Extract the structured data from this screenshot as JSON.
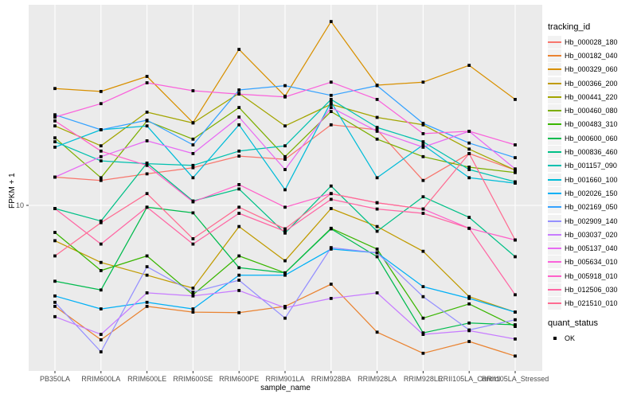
{
  "chart_data": {
    "type": "line",
    "title": "",
    "xlabel": "sample_name",
    "ylabel": "FPKM + 1",
    "y_scale": "log10",
    "y_ticks": [
      {
        "value": 10,
        "label": "10"
      }
    ],
    "grid": "major",
    "panel_background": "#ebebeb",
    "gridline_color": "#ffffff",
    "point_marker": "filled-black-square",
    "legend_position": "right",
    "categories": [
      "PB350LA",
      "RRIM600LA",
      "RRIM600LE",
      "RRIM600SE",
      "RRIM600PE",
      "RRIM901LA",
      "RRIM928BA",
      "RRIM928LA",
      "RRIM928LE",
      "RRII105LA_Control",
      "RRII105LA_Stressed"
    ],
    "series": [
      {
        "name": "Hb_000028_180",
        "color": "#F8766D",
        "values": [
          13.7,
          13.2,
          14.2,
          15.2,
          17.3,
          16.7,
          24.5,
          23.2,
          13.2,
          17.8,
          14.8
        ]
      },
      {
        "name": "Hb_000182_040",
        "color": "#EA8331",
        "values": [
          3.25,
          2.24,
          3.25,
          3.05,
          3.03,
          3.25,
          4.16,
          2.44,
          1.93,
          2.2,
          1.87
        ]
      },
      {
        "name": "Hb_000329_060",
        "color": "#D89000",
        "values": [
          36.7,
          35.5,
          42.0,
          25.1,
          56.7,
          33.7,
          77.3,
          38.1,
          39.4,
          47.5,
          32.5
        ]
      },
      {
        "name": "Hb_000366_200",
        "color": "#C09B00",
        "values": [
          6.75,
          5.3,
          4.6,
          3.98,
          7.9,
          5.4,
          9.65,
          7.9,
          6.0,
          3.62,
          3.05
        ]
      },
      {
        "name": "Hb_000441_220",
        "color": "#A3A500",
        "values": [
          24.2,
          19.4,
          28.2,
          25.0,
          34.8,
          24.2,
          30.8,
          26.6,
          24.5,
          18.7,
          14.8
        ]
      },
      {
        "name": "Hb_000460_080",
        "color": "#7CAE00",
        "values": [
          21.2,
          13.6,
          25.6,
          20.9,
          29.7,
          17.2,
          28.4,
          20.9,
          17.2,
          15.3,
          14.4
        ]
      },
      {
        "name": "Hb_000483_310",
        "color": "#39B600",
        "values": [
          7.4,
          4.84,
          5.7,
          3.7,
          5.7,
          4.72,
          7.75,
          6.15,
          2.85,
          3.34,
          2.6
        ]
      },
      {
        "name": "Hb_000600_060",
        "color": "#00BB4E",
        "values": [
          4.3,
          3.9,
          9.8,
          9.2,
          5.0,
          4.72,
          7.7,
          5.65,
          2.42,
          2.7,
          2.65
        ]
      },
      {
        "name": "Hb_000836_460",
        "color": "#00C087",
        "values": [
          9.65,
          8.4,
          16.0,
          10.5,
          12.0,
          7.35,
          12.4,
          7.5,
          11.0,
          8.75,
          5.65
        ]
      },
      {
        "name": "Hb_001157_090",
        "color": "#00C0AF",
        "values": [
          20.3,
          16.4,
          15.9,
          15.6,
          18.3,
          19.4,
          32.5,
          23.8,
          20.3,
          14.9,
          13.0
        ]
      },
      {
        "name": "Hb_001660_100",
        "color": "#00BCD8",
        "values": [
          19.1,
          23.2,
          24.2,
          13.6,
          24.5,
          11.9,
          31.6,
          13.6,
          19.6,
          13.6,
          12.8
        ]
      },
      {
        "name": "Hb_002026_150",
        "color": "#00B0F6",
        "values": [
          3.65,
          3.16,
          3.4,
          3.16,
          4.6,
          4.6,
          6.15,
          5.9,
          4.05,
          3.55,
          3.05
        ]
      },
      {
        "name": "Hb_002169_050",
        "color": "#35A2FF",
        "values": [
          27.4,
          23.2,
          25.8,
          19.6,
          36.1,
          37.9,
          34.0,
          37.9,
          24.9,
          20.0,
          17.0
        ]
      },
      {
        "name": "Hb_002909_140",
        "color": "#9590FF",
        "values": [
          3.4,
          1.96,
          5.05,
          3.81,
          4.35,
          2.85,
          6.25,
          5.9,
          3.62,
          2.5,
          2.8
        ]
      },
      {
        "name": "Hb_003037_020",
        "color": "#C77CFF",
        "values": [
          2.9,
          2.38,
          3.78,
          3.65,
          3.88,
          3.2,
          3.55,
          3.78,
          2.38,
          2.48,
          2.26
        ]
      },
      {
        "name": "Hb_005137_040",
        "color": "#E76BF3",
        "values": [
          13.7,
          17.2,
          20.5,
          17.8,
          26.7,
          14.9,
          29.7,
          22.8,
          19.1,
          22.8,
          15.0
        ]
      },
      {
        "name": "Hb_005634_010",
        "color": "#FA62DB",
        "values": [
          26.7,
          31.0,
          39.1,
          35.8,
          34.5,
          33.4,
          39.4,
          32.5,
          22.2,
          22.8,
          19.6
        ]
      },
      {
        "name": "Hb_005918_010",
        "color": "#FF61C9",
        "values": [
          25.6,
          18.3,
          15.6,
          10.4,
          12.6,
          9.8,
          11.4,
          10.3,
          9.6,
          7.75,
          6.8
        ]
      },
      {
        "name": "Hb_012506_030",
        "color": "#FF67A4",
        "values": [
          9.65,
          6.5,
          9.8,
          6.5,
          9.15,
          7.5,
          10.7,
          9.6,
          9.15,
          7.75,
          3.7
        ]
      },
      {
        "name": "Hb_021510_010",
        "color": "#FF6C92",
        "values": [
          5.7,
          8.25,
          11.4,
          6.9,
          9.8,
          7.7,
          11.4,
          10.3,
          9.6,
          17.8,
          6.8
        ]
      }
    ]
  },
  "legend": {
    "tracking_title": "tracking_id",
    "quant_title": "quant_status",
    "quant_items": [
      {
        "label": "OK",
        "marker_color": "#000000"
      }
    ]
  },
  "axes": {
    "x_title": "sample_name",
    "y_title": "FPKM + 1",
    "y_tick_label": "10"
  }
}
